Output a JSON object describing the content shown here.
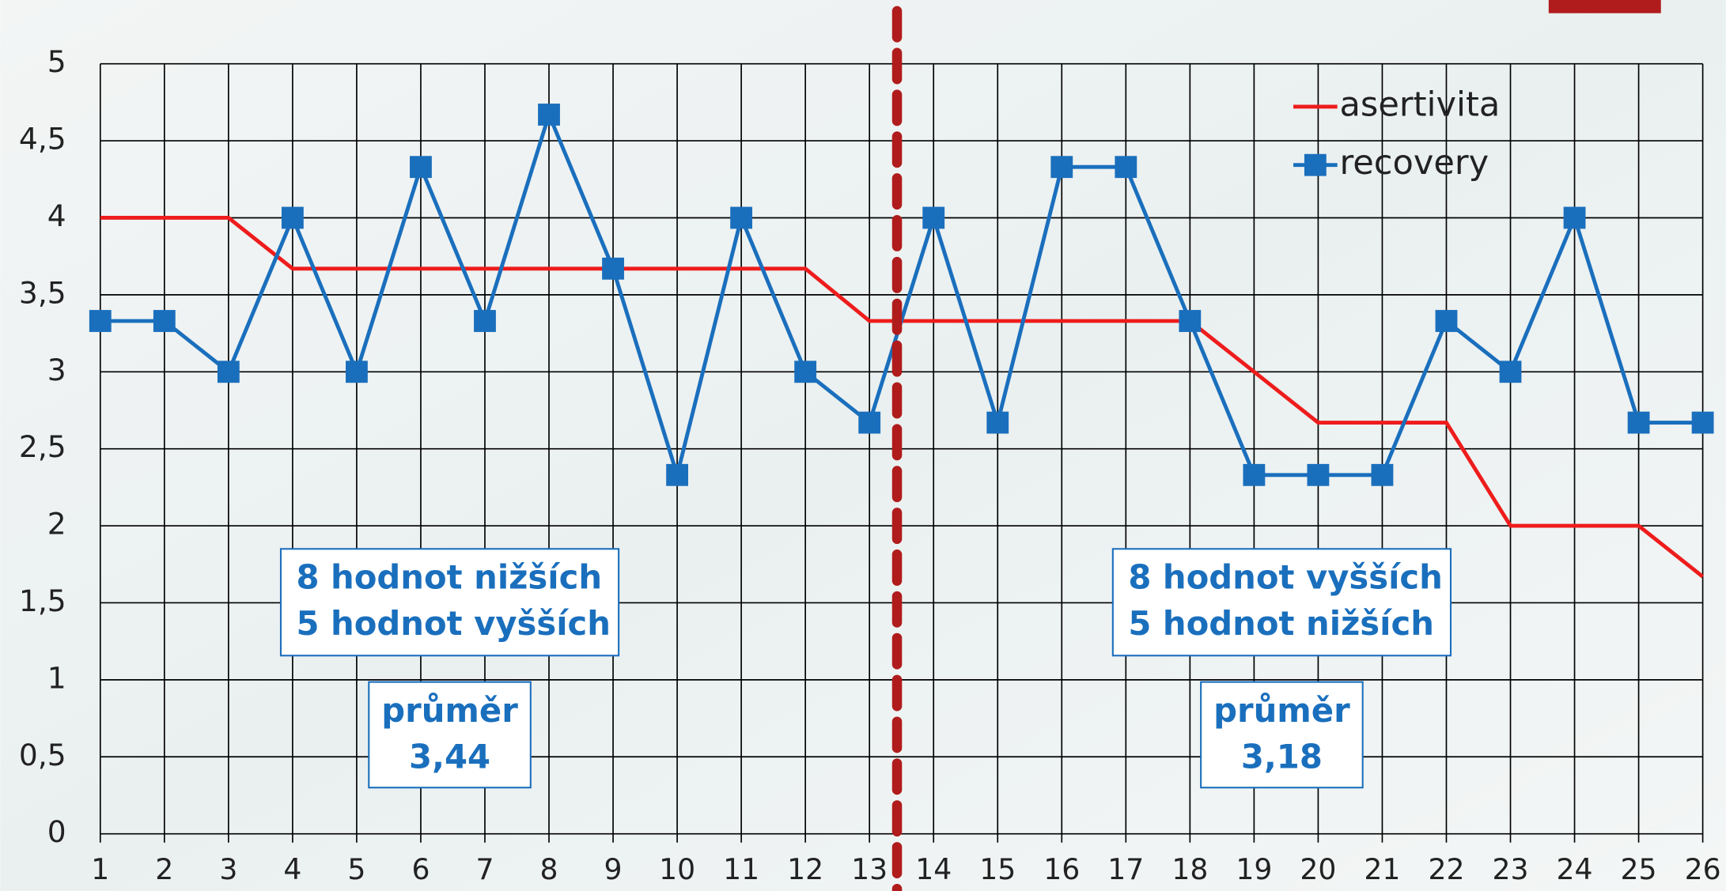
{
  "chart_data": {
    "type": "line",
    "x": [
      1,
      2,
      3,
      4,
      5,
      6,
      7,
      8,
      9,
      10,
      11,
      12,
      13,
      14,
      15,
      16,
      17,
      18,
      19,
      20,
      21,
      22,
      23,
      24,
      25,
      26
    ],
    "series": [
      {
        "name": "asertivita",
        "color": "#ee1c1c",
        "marker": "none",
        "values": [
          4,
          4,
          4,
          3.67,
          3.67,
          3.67,
          3.67,
          3.67,
          3.67,
          3.67,
          3.67,
          3.67,
          3.33,
          3.33,
          3.33,
          3.33,
          3.33,
          3.33,
          3,
          2.67,
          2.67,
          2.67,
          2,
          2,
          2,
          1.67
        ]
      },
      {
        "name": "recovery",
        "color": "#1a6fbd",
        "marker": "square",
        "values": [
          3.33,
          3.33,
          3,
          4,
          3,
          4.33,
          3.33,
          4.67,
          3.67,
          2.33,
          4,
          3,
          2.67,
          4,
          2.67,
          4.33,
          4.33,
          3.33,
          2.33,
          2.33,
          2.33,
          3.33,
          3,
          4,
          2.67,
          2.67
        ]
      }
    ],
    "xlim": [
      1,
      26
    ],
    "xticks": [
      1,
      2,
      3,
      4,
      5,
      6,
      7,
      8,
      9,
      10,
      11,
      12,
      13,
      14,
      15,
      16,
      17,
      18,
      19,
      20,
      21,
      22,
      23,
      24,
      25,
      26
    ],
    "ylim": [
      0,
      5
    ],
    "yticks": [
      0,
      {
        "value": 0.5,
        "label": "0,5"
      },
      1,
      {
        "value": 1.5,
        "label": "1,5"
      },
      2,
      {
        "value": 2.5,
        "label": "2,5"
      },
      3,
      {
        "value": 3.5,
        "label": "3,5"
      },
      4,
      {
        "value": 4.5,
        "label": "4,5"
      },
      5
    ],
    "grid": true,
    "legend": "upper right",
    "divider_x": 13.43,
    "annotations": [
      {
        "lines": [
          "8 hodnot nižších",
          "5 hodnot vyšších"
        ]
      },
      {
        "lines": [
          "průměr",
          "3,44"
        ]
      },
      {
        "lines": [
          "8 hodnot vyšších",
          "5 hodnot nižších"
        ]
      },
      {
        "lines": [
          "průměr",
          "3,18"
        ]
      }
    ]
  }
}
